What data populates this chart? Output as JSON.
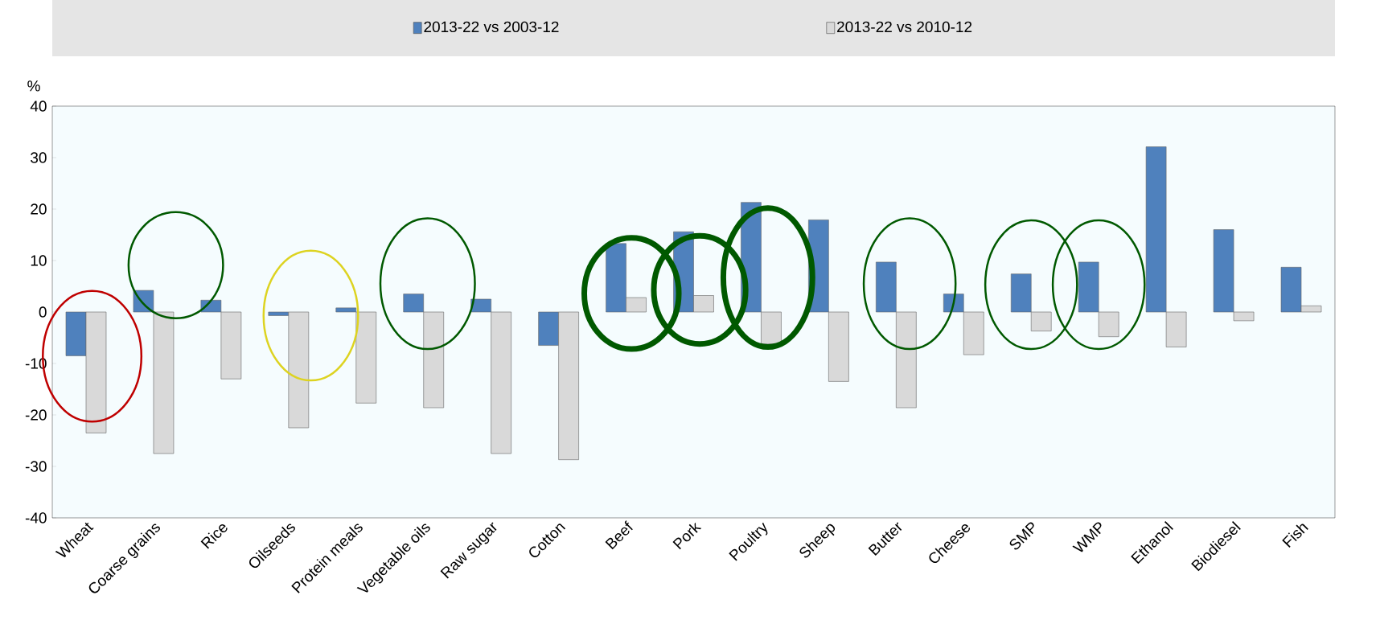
{
  "chart_data": {
    "type": "bar",
    "ylabel": "%",
    "categories": [
      "Wheat",
      "Coarse grains",
      "Rice",
      "Oilseeds",
      "Protein meals",
      "Vegetable oils",
      "Raw sugar",
      "Cotton",
      "Beef",
      "Pork",
      "Poultry",
      "Sheep",
      "Butter",
      "Cheese",
      "SMP",
      "WMP",
      "Ethanol",
      "Biodiesel",
      "Fish"
    ],
    "series": [
      {
        "name": "2013-22 vs 2003-12",
        "color": "#4f81bd",
        "values": [
          -8.5,
          4.2,
          2.3,
          -0.7,
          0.8,
          3.5,
          2.5,
          -6.5,
          13.3,
          15.6,
          21.3,
          17.9,
          9.7,
          3.5,
          7.4,
          9.7,
          32.1,
          16.0,
          8.7
        ]
      },
      {
        "name": "2013-22 vs 2010-12",
        "color": "#d9d9d9",
        "values": [
          -23.5,
          -27.5,
          -13.0,
          -22.5,
          -17.7,
          -18.6,
          -27.5,
          -28.7,
          2.8,
          3.2,
          -6.2,
          -13.5,
          -18.6,
          -8.3,
          -3.7,
          -4.8,
          -6.8,
          -1.7,
          1.2
        ]
      }
    ],
    "ylim": [
      -40,
      40
    ],
    "yticks": [
      -40,
      -30,
      -20,
      -10,
      0,
      10,
      20,
      30,
      40
    ],
    "grid": false,
    "legend": "top"
  }
}
